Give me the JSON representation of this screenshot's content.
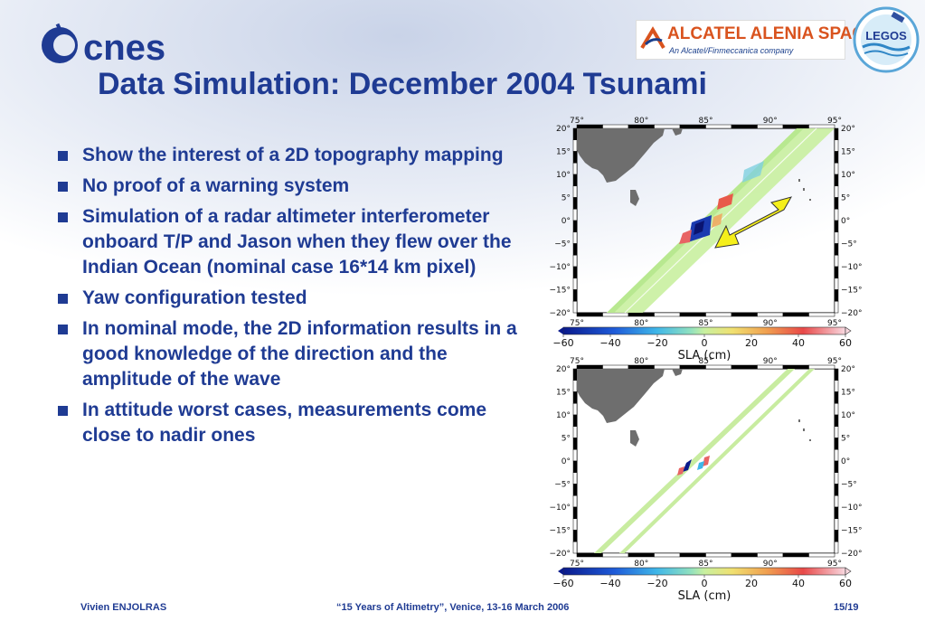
{
  "logos": {
    "cnes_text": "cnes",
    "alcatel_name": "ALCATEL ALENIA SPACE",
    "alcatel_sub": "An Alcatel/Finmeccanica company",
    "legos_text": "LEGOS"
  },
  "slide": {
    "title": "Data Simulation: December 2004 Tsunami",
    "bullets": [
      "Show the interest of a 2D topography mapping",
      "No proof of a warning system",
      "Simulation of a radar altimeter interferometer onboard T/P and Jason when they flew over the Indian Ocean (nominal case 16*14 km pixel)",
      "Yaw configuration tested",
      "In nominal mode, the 2D information results in a good knowledge of the direction and the amplitude of the wave",
      "In attitude worst cases, measurements come close to nadir ones"
    ]
  },
  "maps": {
    "lon_ticks": [
      "75°",
      "80°",
      "85°",
      "90°",
      "95°"
    ],
    "lat_ticks": [
      "20°",
      "15°",
      "10°",
      "5°",
      "0°",
      "−5°",
      "−10°",
      "−15°",
      "−20°"
    ],
    "colorbar_ticks": [
      "−60",
      "−40",
      "−20",
      "0",
      "20",
      "40",
      "60"
    ],
    "colorbar_label": "SLA (cm)",
    "arrow_color": "#f5ef1a"
  },
  "footer": {
    "author": "Vivien ENJOLRAS",
    "event": "“15 Years of Altimetry”, Venice, 13-16 March 2006",
    "page": "15/19"
  }
}
